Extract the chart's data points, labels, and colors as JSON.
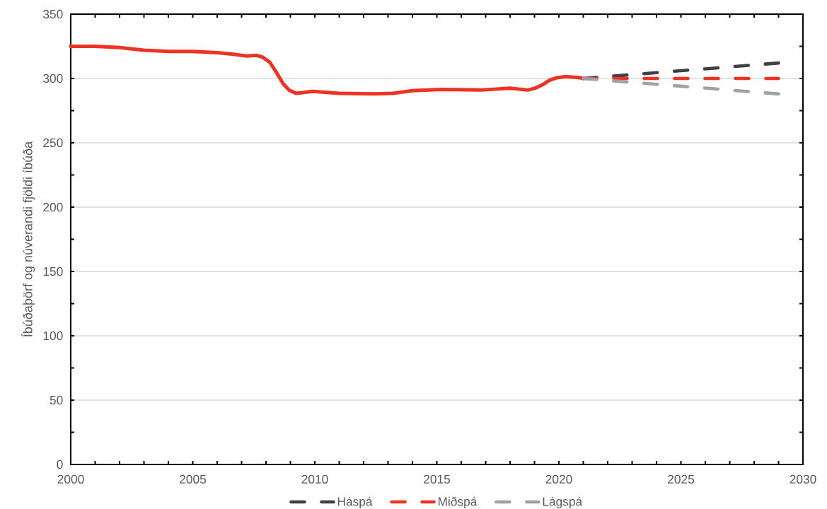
{
  "chart_data": {
    "type": "line",
    "ylabel": "Íbúðaþörf og núverandi fjöldi íbúða",
    "xlim": [
      2000,
      2030
    ],
    "xticks": [
      2000,
      {
        "value": 2001,
        "label": null
      },
      {
        "value": 2002,
        "label": null
      },
      {
        "value": 2003,
        "label": null
      },
      {
        "value": 2004,
        "label": null
      },
      2005,
      {
        "value": 2006,
        "label": null
      },
      {
        "value": 2007,
        "label": null
      },
      {
        "value": 2008,
        "label": null
      },
      {
        "value": 2009,
        "label": null
      },
      2010,
      {
        "value": 2011,
        "label": null
      },
      {
        "value": 2012,
        "label": null
      },
      {
        "value": 2013,
        "label": null
      },
      {
        "value": 2014,
        "label": null
      },
      2015,
      {
        "value": 2016,
        "label": null
      },
      {
        "value": 2017,
        "label": null
      },
      {
        "value": 2018,
        "label": null
      },
      {
        "value": 2019,
        "label": null
      },
      2020,
      {
        "value": 2021,
        "label": null
      },
      {
        "value": 2022,
        "label": null
      },
      {
        "value": 2023,
        "label": null
      },
      {
        "value": 2024,
        "label": null
      },
      2025,
      {
        "value": 2026,
        "label": null
      },
      {
        "value": 2027,
        "label": null
      },
      {
        "value": 2028,
        "label": null
      },
      {
        "value": 2029,
        "label": null
      },
      2030
    ],
    "ylim": [
      0,
      350
    ],
    "yticks": [
      0,
      {
        "value": 25,
        "label": null
      },
      50,
      {
        "value": 75,
        "label": null
      },
      100,
      {
        "value": 125,
        "label": null
      },
      150,
      {
        "value": 175,
        "label": null
      },
      200,
      {
        "value": 225,
        "label": null
      },
      250,
      {
        "value": 275,
        "label": null
      },
      300,
      {
        "value": 325,
        "label": null
      },
      350
    ],
    "grid": "y",
    "legend": "bottom",
    "series": [
      {
        "color": "#ee3224",
        "line_style": "solid",
        "x": [
          2000,
          2001,
          2002,
          2003,
          2004,
          2005,
          2006,
          2006.6,
          2007.2,
          2007.6,
          2007.87,
          2008.16,
          2008.45,
          2008.7,
          2008.94,
          2009.23,
          2009.5,
          2009.9,
          2011,
          2012.5,
          2013.2,
          2014,
          2015.2,
          2016.8,
          2018,
          2018.74,
          2019.03,
          2019.32,
          2019.61,
          2019.9,
          2020.29,
          2020.87,
          2021
        ],
        "values": [
          325,
          325,
          324,
          322,
          321,
          321,
          320,
          319,
          317.5,
          318,
          316.5,
          312.5,
          304,
          296,
          291,
          288.5,
          289,
          290,
          288.5,
          288,
          288.5,
          290.5,
          291.5,
          291,
          292.5,
          291,
          292.5,
          295,
          298.5,
          300.5,
          301.5,
          300.5,
          300
        ]
      },
      {
        "name": "Háspá",
        "color": "#3d4044",
        "line_style": "dashed",
        "x": [
          2021,
          2022,
          2023,
          2024,
          2025,
          2026,
          2027,
          2028,
          2029
        ],
        "values": [
          300,
          301.5,
          303,
          304.5,
          306,
          307.5,
          309,
          310.5,
          312
        ]
      },
      {
        "name": "Miðspá",
        "color": "#ee3224",
        "line_style": "dashed",
        "x": [
          2021,
          2022,
          2023,
          2024,
          2025,
          2026,
          2027,
          2028,
          2029
        ],
        "values": [
          300,
          300,
          300,
          300,
          300,
          300,
          300,
          300,
          300
        ]
      },
      {
        "name": "Lágspá",
        "color": "#9ea1a5",
        "line_style": "dashed",
        "x": [
          2021,
          2022,
          2023,
          2024,
          2025,
          2026,
          2027,
          2028,
          2029
        ],
        "values": [
          300,
          298.5,
          297,
          295.5,
          294,
          292.5,
          291,
          289.5,
          288
        ]
      }
    ]
  }
}
